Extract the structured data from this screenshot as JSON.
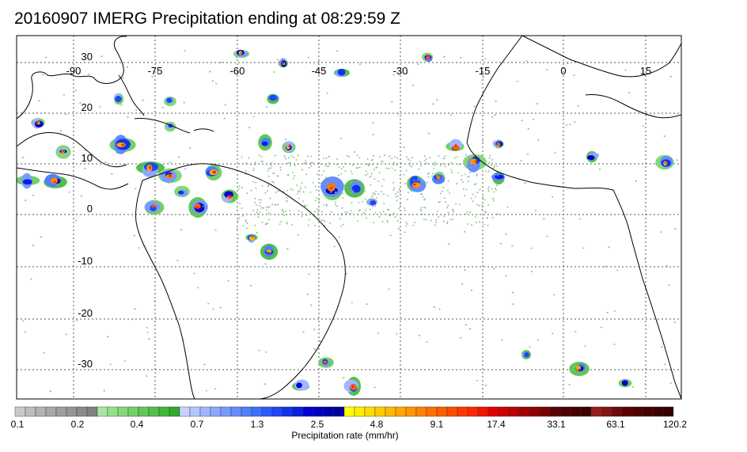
{
  "title": "20160907 IMERG Precipitation ending at 08:29:59 Z",
  "map": {
    "lat_labels": [
      "30",
      "20",
      "10",
      "0",
      "-10",
      "-20",
      "-30"
    ],
    "lon_labels": [
      "-90",
      "-75",
      "-60",
      "-45",
      "-30",
      "-15",
      "0",
      "15"
    ],
    "grid": "dotted"
  },
  "colorbar": {
    "title": "Precipitation rate (mm/hr)",
    "tick_labels": [
      "0.1",
      "0.2",
      "0.4",
      "0.7",
      "1.3",
      "2.5",
      "4.8",
      "9.1",
      "17.4",
      "33.1",
      "63.1",
      "120.2"
    ],
    "colors": [
      "#c8c8c8",
      "#bdbdbd",
      "#b3b3b3",
      "#a9a9a9",
      "#9f9f9f",
      "#959595",
      "#8b8b8b",
      "#818181",
      "#a6e6a0",
      "#95df8e",
      "#84d77d",
      "#73cf6c",
      "#62c75b",
      "#52bf4b",
      "#41b73c",
      "#31a82e",
      "#c8d2ff",
      "#b4c4ff",
      "#a0b6ff",
      "#8ca8ff",
      "#789aff",
      "#648cff",
      "#507eff",
      "#3c70ff",
      "#2a5aff",
      "#1e46f5",
      "#1432eb",
      "#0a1ee1",
      "#0000d7",
      "#0000c3",
      "#0000af",
      "#00009b",
      "#ffff00",
      "#ffee00",
      "#ffdc00",
      "#ffca00",
      "#ffb800",
      "#ffa600",
      "#ff9400",
      "#ff8200",
      "#ff7000",
      "#ff5e00",
      "#ff4c00",
      "#ff3a00",
      "#ff2800",
      "#f01400",
      "#e10000",
      "#cd0000",
      "#b90000",
      "#a50000",
      "#910000",
      "#7d0000",
      "#5a0000",
      "#500000",
      "#460000",
      "#3c0000",
      "#961e1e",
      "#821414",
      "#6e0a0a",
      "#5a0000",
      "#500000",
      "#460000",
      "#3c0000",
      "#320000"
    ]
  }
}
